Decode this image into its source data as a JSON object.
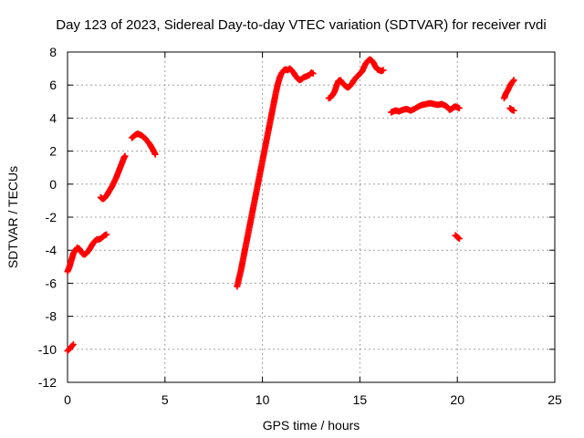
{
  "chart_data": {
    "type": "scatter",
    "title": "Day 123 of 2023, Sidereal Day-to-day VTEC variation (SDTVAR) for receiver rvdi",
    "xlabel": "GPS time / hours",
    "ylabel": "SDTVAR / TECUs",
    "xlim": [
      0,
      25
    ],
    "ylim": [
      -12,
      8
    ],
    "xticks": [
      0,
      5,
      10,
      15,
      20,
      25
    ],
    "xtick_labels": [
      "0",
      "5",
      "10",
      "15",
      "20",
      "25"
    ],
    "yticks": [
      -12,
      -10,
      -8,
      -6,
      -4,
      -2,
      0,
      2,
      4,
      6,
      8
    ],
    "ytick_labels": [
      "-12",
      "-10",
      "-8",
      "-6",
      "-4",
      "-2",
      "0",
      "2",
      "4",
      "6",
      "8"
    ],
    "grid": true,
    "marker": "plus",
    "color": "#ff0000",
    "series": [
      {
        "segments": [
          [
            [
              0.0,
              -10.1
            ],
            [
              0.15,
              -9.9
            ],
            [
              0.3,
              -9.7
            ]
          ],
          [
            [
              0.0,
              -5.3
            ],
            [
              0.1,
              -5.0
            ],
            [
              0.2,
              -4.6
            ],
            [
              0.3,
              -4.2
            ],
            [
              0.4,
              -4.0
            ],
            [
              0.5,
              -3.85
            ],
            [
              0.6,
              -3.9
            ],
            [
              0.7,
              -4.1
            ],
            [
              0.8,
              -4.25
            ],
            [
              0.9,
              -4.25
            ],
            [
              1.0,
              -4.15
            ],
            [
              1.1,
              -4.0
            ],
            [
              1.2,
              -3.8
            ],
            [
              1.3,
              -3.6
            ],
            [
              1.4,
              -3.45
            ],
            [
              1.5,
              -3.35
            ],
            [
              1.6,
              -3.35
            ],
            [
              1.7,
              -3.3
            ],
            [
              1.8,
              -3.2
            ],
            [
              1.9,
              -3.1
            ],
            [
              2.0,
              -3.05
            ]
          ],
          [
            [
              1.7,
              -0.8
            ],
            [
              1.8,
              -0.9
            ],
            [
              1.9,
              -0.85
            ],
            [
              2.0,
              -0.7
            ],
            [
              2.1,
              -0.5
            ],
            [
              2.2,
              -0.3
            ],
            [
              2.3,
              -0.1
            ],
            [
              2.4,
              0.15
            ],
            [
              2.5,
              0.4
            ],
            [
              2.6,
              0.7
            ],
            [
              2.7,
              1.0
            ],
            [
              2.8,
              1.3
            ],
            [
              2.9,
              1.6
            ],
            [
              2.95,
              1.7
            ]
          ],
          [
            [
              3.3,
              2.8
            ],
            [
              3.4,
              2.9
            ],
            [
              3.5,
              3.0
            ],
            [
              3.6,
              3.05
            ],
            [
              3.7,
              3.0
            ],
            [
              3.8,
              2.95
            ],
            [
              3.9,
              2.85
            ],
            [
              4.0,
              2.75
            ],
            [
              4.1,
              2.6
            ],
            [
              4.2,
              2.45
            ],
            [
              4.3,
              2.25
            ],
            [
              4.4,
              2.05
            ],
            [
              4.5,
              1.8
            ]
          ],
          [
            [
              8.7,
              -6.2
            ],
            [
              8.8,
              -5.7
            ],
            [
              8.9,
              -5.2
            ],
            [
              9.0,
              -4.6
            ],
            [
              9.1,
              -4.0
            ],
            [
              9.2,
              -3.4
            ],
            [
              9.3,
              -2.8
            ],
            [
              9.4,
              -2.2
            ],
            [
              9.5,
              -1.6
            ],
            [
              9.6,
              -1.0
            ],
            [
              9.7,
              -0.4
            ],
            [
              9.8,
              0.2
            ],
            [
              9.9,
              0.8
            ],
            [
              10.0,
              1.4
            ],
            [
              10.1,
              2.0
            ],
            [
              10.2,
              2.6
            ],
            [
              10.3,
              3.2
            ],
            [
              10.4,
              3.8
            ],
            [
              10.5,
              4.4
            ],
            [
              10.6,
              5.0
            ],
            [
              10.7,
              5.6
            ],
            [
              10.8,
              6.1
            ],
            [
              10.9,
              6.5
            ],
            [
              11.0,
              6.75
            ],
            [
              11.1,
              6.9
            ],
            [
              11.2,
              6.95
            ],
            [
              11.3,
              6.9
            ],
            [
              11.4,
              7.0
            ],
            [
              11.5,
              6.9
            ],
            [
              11.6,
              6.75
            ],
            [
              11.7,
              6.55
            ],
            [
              11.8,
              6.4
            ],
            [
              11.9,
              6.3
            ],
            [
              12.0,
              6.35
            ],
            [
              12.1,
              6.45
            ],
            [
              12.2,
              6.5
            ],
            [
              12.3,
              6.55
            ],
            [
              12.4,
              6.6
            ],
            [
              12.5,
              6.75
            ],
            [
              12.6,
              6.7
            ]
          ],
          [
            [
              13.4,
              5.2
            ],
            [
              13.5,
              5.25
            ],
            [
              13.6,
              5.4
            ],
            [
              13.7,
              5.6
            ],
            [
              13.8,
              5.95
            ],
            [
              13.9,
              6.25
            ],
            [
              14.0,
              6.3
            ],
            [
              14.1,
              6.15
            ],
            [
              14.2,
              6.0
            ],
            [
              14.3,
              5.9
            ],
            [
              14.4,
              5.85
            ],
            [
              14.5,
              5.95
            ],
            [
              14.6,
              6.1
            ],
            [
              14.7,
              6.3
            ],
            [
              14.8,
              6.45
            ],
            [
              14.9,
              6.55
            ],
            [
              15.0,
              6.7
            ],
            [
              15.1,
              6.8
            ],
            [
              15.2,
              7.05
            ],
            [
              15.3,
              7.3
            ],
            [
              15.4,
              7.45
            ],
            [
              15.5,
              7.55
            ],
            [
              15.6,
              7.5
            ],
            [
              15.7,
              7.35
            ],
            [
              15.8,
              7.1
            ],
            [
              15.9,
              6.95
            ],
            [
              16.0,
              6.9
            ],
            [
              16.1,
              6.85
            ],
            [
              16.2,
              6.9
            ]
          ],
          [
            [
              16.6,
              4.35
            ],
            [
              16.7,
              4.4
            ],
            [
              16.8,
              4.45
            ],
            [
              16.9,
              4.45
            ],
            [
              17.0,
              4.4
            ],
            [
              17.2,
              4.5
            ],
            [
              17.4,
              4.55
            ],
            [
              17.6,
              4.45
            ],
            [
              17.8,
              4.55
            ],
            [
              18.0,
              4.7
            ],
            [
              18.2,
              4.8
            ],
            [
              18.4,
              4.85
            ],
            [
              18.6,
              4.9
            ],
            [
              18.8,
              4.85
            ],
            [
              19.0,
              4.8
            ],
            [
              19.2,
              4.85
            ],
            [
              19.4,
              4.75
            ],
            [
              19.5,
              4.65
            ],
            [
              19.6,
              4.5
            ],
            [
              19.7,
              4.55
            ],
            [
              19.8,
              4.65
            ],
            [
              19.9,
              4.7
            ],
            [
              20.0,
              4.65
            ],
            [
              20.1,
              4.6
            ]
          ],
          [
            [
              19.9,
              -3.1
            ],
            [
              20.0,
              -3.2
            ],
            [
              20.1,
              -3.3
            ]
          ],
          [
            [
              22.4,
              5.2
            ],
            [
              22.5,
              5.5
            ],
            [
              22.6,
              5.7
            ],
            [
              22.7,
              5.95
            ],
            [
              22.8,
              6.15
            ],
            [
              22.9,
              6.3
            ]
          ],
          [
            [
              22.7,
              4.6
            ],
            [
              22.8,
              4.5
            ],
            [
              22.9,
              4.45
            ]
          ]
        ]
      }
    ]
  }
}
